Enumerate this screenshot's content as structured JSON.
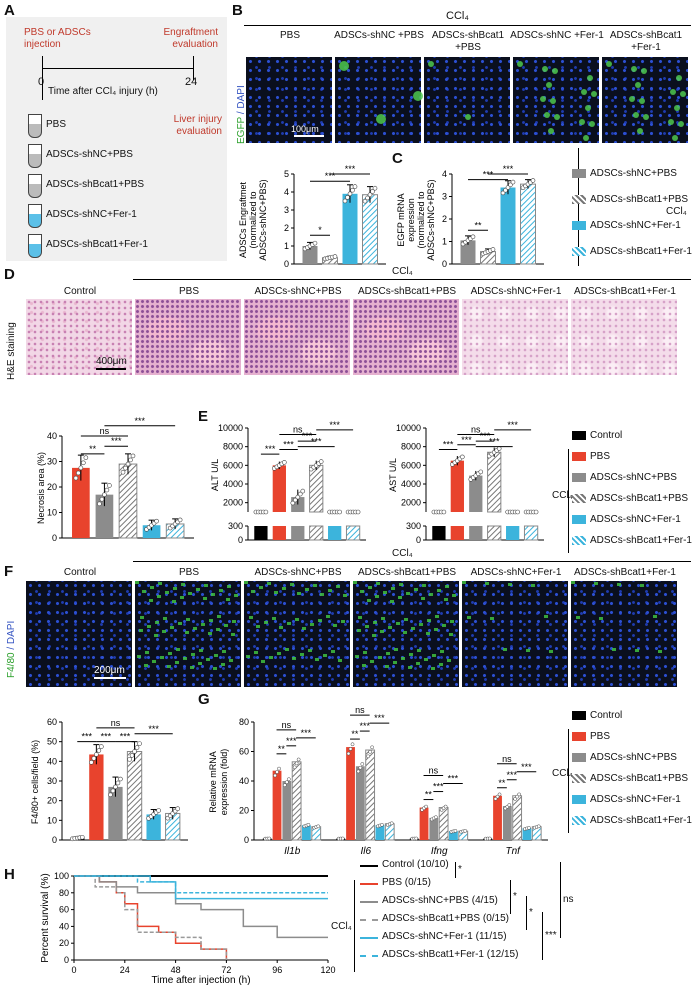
{
  "panels": {
    "A": "A",
    "B": "B",
    "C": "C",
    "D": "D",
    "E": "E",
    "F": "F",
    "G": "G",
    "H": "H"
  },
  "A": {
    "injection": "PBS or ADSCs injection",
    "engraftment": "Engraftment evaluation",
    "time0": "0",
    "time24": "24",
    "timeline_label": "Time after CCl₄ injury (h)",
    "liver_eval": "Liver injury evaluation",
    "tubes": [
      "PBS",
      "ADSCs-shNC+PBS",
      "ADSCs-shBcat1+PBS",
      "ADSCs-shNC+Fer-1",
      "ADSCs-shBcat1+Fer-1"
    ]
  },
  "B": {
    "ccl4": "CCl₄",
    "cols": [
      "PBS",
      "ADSCs-shNC +PBS",
      "ADSCs-shBcat1 +PBS",
      "ADSCs-shNC +Fer-1",
      "ADSCs-shBcat1 +Fer-1"
    ],
    "ylabel_egfp": "EGFP",
    "ylabel_dapi": "/ DAPI",
    "scale": "100μm"
  },
  "C": {
    "ccl4": "CCl₄"
  },
  "D": {
    "ccl4": "CCl₄",
    "cols": [
      "Control",
      "PBS",
      "ADSCs-shNC+PBS",
      "ADSCs-shBcat1+PBS",
      "ADSCs-shNC+Fer-1",
      "ADSCs-shBcat1+Fer-1"
    ],
    "ylabel": "H&E staining",
    "scale": "400μm"
  },
  "E": {
    "ccl4": "CCl₄"
  },
  "F": {
    "ccl4": "CCl₄",
    "cols": [
      "Control",
      "PBS",
      "ADSCs-shNC+PBS",
      "ADSCs-shBcat1+PBS",
      "ADSCs-shNC+Fer-1",
      "ADSCs-shBcat1+Fer-1"
    ],
    "ylabel_f480": "F4/80",
    "ylabel_dapi": "/ DAPI",
    "scale": "200μm"
  },
  "G": {
    "ccl4": "CCl₄"
  },
  "legend_groups": [
    "Control",
    "PBS",
    "ADSCs-shNC+PBS",
    "ADSCs-shBcat1+PBS",
    "ADSCs-shNC+Fer-1",
    "ADSCs-shBcat1+Fer-1"
  ],
  "legend_groups_C": [
    "ADSCs-shNC+PBS",
    "ADSCs-shBcat1+PBS",
    "ADSCs-shNC+Fer-1",
    "ADSCs-shBcat1+Fer-1"
  ],
  "H_legend": [
    "Control (10/10)",
    "PBS (0/15)",
    "ADSCs-shNC+PBS (4/15)",
    "ADSCs-shBcat1+PBS (0/15)",
    "ADSCs-shNC+Fer-1 (11/15)",
    "ADSCs-shBcat1+Fer-1 (12/15)"
  ],
  "H_ccl4": "CCl₄",
  "colors": {
    "control": "#000000",
    "pbs": "#e8432d",
    "shnc": "#8c8c8c",
    "shbcat": "#9a9a9a",
    "fer": "#3cb4dc",
    "fer_bcat": "#3cb4dc"
  },
  "chart_data": [
    {
      "type": "bar",
      "id": "B-engraftment",
      "ylabel": "ADSCs Engraftmet (normalized to ADSCs-shNC+PBS)",
      "categories": [
        "ADSCs-shNC+PBS",
        "ADSCs-shBcat1+PBS",
        "ADSCs-shNC+Fer-1",
        "ADSCs-shBcat1+Fer-1"
      ],
      "values": [
        1.0,
        0.35,
        3.9,
        3.85
      ],
      "errors": [
        0.2,
        0.08,
        0.5,
        0.45
      ],
      "ylim": [
        0,
        5
      ],
      "yticks": [
        0,
        1,
        2,
        3,
        4,
        5
      ],
      "significance": [
        "*",
        "***",
        "***"
      ]
    },
    {
      "type": "bar",
      "id": "C-egfp",
      "ylabel": "EGFP mRNA expression (normalized to ADSCs-shNC+PBS)",
      "categories": [
        "ADSCs-shNC+PBS",
        "ADSCs-shBcat1+PBS",
        "ADSCs-shNC+Fer-1",
        "ADSCs-shBcat1+Fer-1"
      ],
      "values": [
        1.05,
        0.55,
        3.4,
        3.55
      ],
      "errors": [
        0.2,
        0.12,
        0.3,
        0.2
      ],
      "ylim": [
        0,
        4
      ],
      "yticks": [
        0,
        1,
        2,
        3,
        4
      ],
      "significance": [
        "**",
        "***",
        "***"
      ]
    },
    {
      "type": "bar",
      "id": "D-necrosis",
      "ylabel": "Necrosis area (%)",
      "categories": [
        "PBS",
        "ADSCs-shNC+PBS",
        "ADSCs-shBcat1+PBS",
        "ADSCs-shNC+Fer-1",
        "ADSCs-shBcat1+Fer-1"
      ],
      "values": [
        27.5,
        17,
        29,
        5,
        5.5
      ],
      "errors": [
        5,
        4.5,
        4,
        2,
        2
      ],
      "ylim": [
        0,
        40
      ],
      "yticks": [
        0,
        10,
        20,
        30,
        40
      ],
      "significance": [
        "ns",
        "**",
        "***",
        "***"
      ]
    },
    {
      "type": "bar",
      "id": "E-alt",
      "ylabel": "ALT U/L",
      "categories": [
        "Control",
        "PBS",
        "ADSCs-shNC+PBS",
        "ADSCs-shBcat1+PBS",
        "ADSCs-shNC+Fer-1",
        "ADSCs-shBcat1+Fer-1"
      ],
      "values": [
        150,
        6000,
        2600,
        6000,
        750,
        780
      ],
      "errors": [
        50,
        400,
        800,
        500,
        100,
        100
      ],
      "yticks_upper": [
        2000,
        4000,
        6000,
        8000,
        10000
      ],
      "yticks_lower": [
        0,
        300
      ],
      "significance": [
        "ns",
        "***",
        "***",
        "***",
        "***",
        "***"
      ]
    },
    {
      "type": "bar",
      "id": "E-ast",
      "ylabel": "AST U/L",
      "categories": [
        "Control",
        "PBS",
        "ADSCs-shNC+PBS",
        "ADSCs-shBcat1+PBS",
        "ADSCs-shNC+Fer-1",
        "ADSCs-shBcat1+Fer-1"
      ],
      "values": [
        150,
        6500,
        4900,
        7400,
        1000,
        1000
      ],
      "errors": [
        50,
        500,
        500,
        500,
        100,
        100
      ],
      "yticks_upper": [
        2000,
        4000,
        6000,
        8000,
        10000
      ],
      "yticks_lower": [
        0,
        300
      ],
      "significance": [
        "ns",
        "***",
        "***",
        "***",
        "***",
        "***"
      ]
    },
    {
      "type": "bar",
      "id": "F-f480",
      "ylabel": "F4/80+ cells/field (%)",
      "categories": [
        "Control",
        "PBS",
        "ADSCs-shNC+PBS",
        "ADSCs-shBcat1+PBS",
        "ADSCs-shNC+Fer-1",
        "ADSCs-shBcat1+Fer-1"
      ],
      "values": [
        1,
        43.5,
        27,
        45,
        13,
        13.5
      ],
      "errors": [
        0.5,
        5,
        5,
        5,
        2.5,
        3
      ],
      "ylim": [
        0,
        60
      ],
      "yticks": [
        0,
        10,
        20,
        30,
        40,
        50,
        60
      ],
      "significance": [
        "ns",
        "***",
        "***",
        "***",
        "***"
      ]
    },
    {
      "type": "bar",
      "id": "G-mrna",
      "ylabel": "Relative mRNA expression (fold)",
      "categories": [
        "Il1b",
        "Il6",
        "Ifng",
        "Tnf"
      ],
      "series": [
        {
          "name": "Control",
          "values": [
            1,
            1,
            1,
            1
          ]
        },
        {
          "name": "PBS",
          "values": [
            47,
            63,
            22,
            30
          ]
        },
        {
          "name": "ADSCs-shNC+PBS",
          "values": [
            40,
            50,
            15,
            23
          ]
        },
        {
          "name": "ADSCs-shBcat1+PBS",
          "values": [
            53,
            61,
            22,
            30
          ]
        },
        {
          "name": "ADSCs-shNC+Fer-1",
          "values": [
            10,
            10,
            6,
            8
          ]
        },
        {
          "name": "ADSCs-shBcat1+Fer-1",
          "values": [
            9,
            11,
            6,
            9
          ]
        }
      ],
      "ylim": [
        0,
        80
      ],
      "yticks": [
        0,
        20,
        40,
        60,
        80
      ]
    },
    {
      "type": "line",
      "id": "H-survival",
      "xlabel": "Time after injection (h)",
      "ylabel": "Percent survival (%)",
      "xlim": [
        0,
        120
      ],
      "ylim": [
        0,
        100
      ],
      "xticks": [
        0,
        24,
        48,
        72,
        96,
        120
      ],
      "yticks": [
        0,
        20,
        40,
        60,
        80,
        100
      ],
      "series": [
        {
          "name": "Control (10/10)",
          "x": [
            0,
            120
          ],
          "y": [
            100,
            100
          ]
        },
        {
          "name": "PBS (0/15)",
          "x": [
            0,
            12,
            20,
            24,
            30,
            40,
            48,
            60,
            72
          ],
          "y": [
            100,
            93,
            80,
            67,
            40,
            33,
            20,
            13,
            0
          ]
        },
        {
          "name": "ADSCs-shNC+PBS (4/15)",
          "x": [
            0,
            12,
            20,
            30,
            48,
            60,
            80,
            96,
            120
          ],
          "y": [
            100,
            93,
            87,
            80,
            67,
            60,
            40,
            27,
            27
          ]
        },
        {
          "name": "ADSCs-shBcat1+PBS (0/15)",
          "x": [
            0,
            10,
            20,
            24,
            30,
            48,
            60,
            72
          ],
          "y": [
            100,
            87,
            80,
            60,
            33,
            27,
            13,
            0
          ]
        },
        {
          "name": "ADSCs-shNC+Fer-1 (11/15)",
          "x": [
            0,
            36,
            48,
            120
          ],
          "y": [
            100,
            93,
            73,
            73
          ]
        },
        {
          "name": "ADSCs-shBcat1+Fer-1 (12/15)",
          "x": [
            0,
            30,
            48,
            120
          ],
          "y": [
            100,
            93,
            80,
            80
          ]
        }
      ]
    }
  ]
}
